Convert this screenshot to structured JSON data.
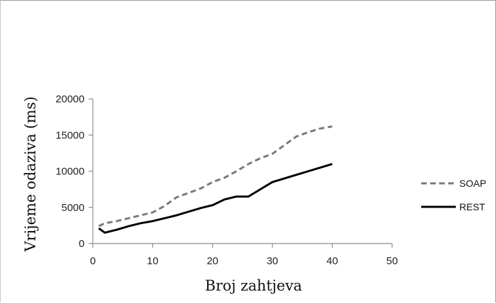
{
  "chart_data": {
    "type": "line",
    "title": "",
    "xlabel": "Broj zahtjeva",
    "ylabel": "Vrijeme odaziva (ms)",
    "xlim": [
      0,
      50
    ],
    "ylim": [
      0,
      20000
    ],
    "x_ticks": [
      0,
      10,
      20,
      30,
      40,
      50
    ],
    "y_ticks": [
      0,
      5000,
      10000,
      15000,
      20000
    ],
    "grid": false,
    "legend_position": "right",
    "series": [
      {
        "name": "SOAP",
        "color": "#7a7a7a",
        "line_style": "dashed",
        "x": [
          1,
          2,
          4,
          6,
          8,
          10,
          12,
          14,
          16,
          18,
          20,
          22,
          24,
          26,
          28,
          30,
          32,
          34,
          36,
          38,
          40
        ],
        "values": [
          2400,
          2800,
          3100,
          3500,
          3900,
          4300,
          5200,
          6400,
          7000,
          7600,
          8500,
          9100,
          10000,
          11000,
          11800,
          12400,
          13600,
          14800,
          15400,
          15900,
          16200
        ]
      },
      {
        "name": "REST",
        "color": "#000000",
        "line_style": "solid",
        "x": [
          1,
          2,
          4,
          6,
          8,
          10,
          12,
          14,
          16,
          18,
          20,
          22,
          24,
          26,
          28,
          30,
          32,
          34,
          36,
          38,
          40
        ],
        "values": [
          2100,
          1500,
          1900,
          2400,
          2800,
          3100,
          3500,
          3900,
          4400,
          4900,
          5300,
          6100,
          6500,
          6500,
          7500,
          8500,
          9000,
          9500,
          10000,
          10500,
          11000
        ]
      }
    ]
  }
}
